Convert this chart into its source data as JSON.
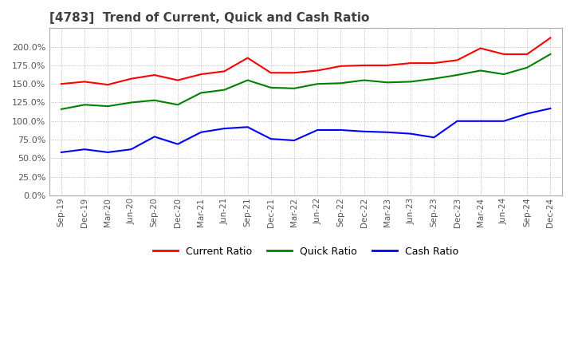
{
  "title": "[4783]  Trend of Current, Quick and Cash Ratio",
  "x_labels": [
    "Sep-19",
    "Dec-19",
    "Mar-20",
    "Jun-20",
    "Sep-20",
    "Dec-20",
    "Mar-21",
    "Jun-21",
    "Sep-21",
    "Dec-21",
    "Mar-22",
    "Jun-22",
    "Sep-22",
    "Dec-22",
    "Mar-23",
    "Jun-23",
    "Sep-23",
    "Dec-23",
    "Mar-24",
    "Jun-24",
    "Sep-24",
    "Dec-24"
  ],
  "current_ratio": [
    1.5,
    1.53,
    1.49,
    1.57,
    1.62,
    1.55,
    1.63,
    1.67,
    1.85,
    1.65,
    1.65,
    1.68,
    1.74,
    1.75,
    1.75,
    1.78,
    1.78,
    1.82,
    1.98,
    1.9,
    1.9,
    2.12
  ],
  "quick_ratio": [
    1.16,
    1.22,
    1.2,
    1.25,
    1.28,
    1.22,
    1.38,
    1.42,
    1.55,
    1.45,
    1.44,
    1.5,
    1.51,
    1.55,
    1.52,
    1.53,
    1.57,
    1.62,
    1.68,
    1.63,
    1.72,
    1.9
  ],
  "cash_ratio": [
    0.58,
    0.62,
    0.58,
    0.62,
    0.79,
    0.69,
    0.85,
    0.9,
    0.92,
    0.76,
    0.74,
    0.88,
    0.88,
    0.86,
    0.85,
    0.83,
    0.78,
    1.0,
    1.0,
    1.0,
    1.1,
    1.17
  ],
  "current_color": "#ff0000",
  "quick_color": "#008000",
  "cash_color": "#0000ff",
  "ylim": [
    0.0,
    2.25
  ],
  "yticks": [
    0.0,
    0.25,
    0.5,
    0.75,
    1.0,
    1.25,
    1.5,
    1.75,
    2.0
  ],
  "grid_color": "#aaaaaa",
  "bg_color": "#ffffff",
  "plot_bg_color": "#ffffff",
  "title_color": "#404040",
  "title_fontsize": 11,
  "legend_labels": [
    "Current Ratio",
    "Quick Ratio",
    "Cash Ratio"
  ]
}
